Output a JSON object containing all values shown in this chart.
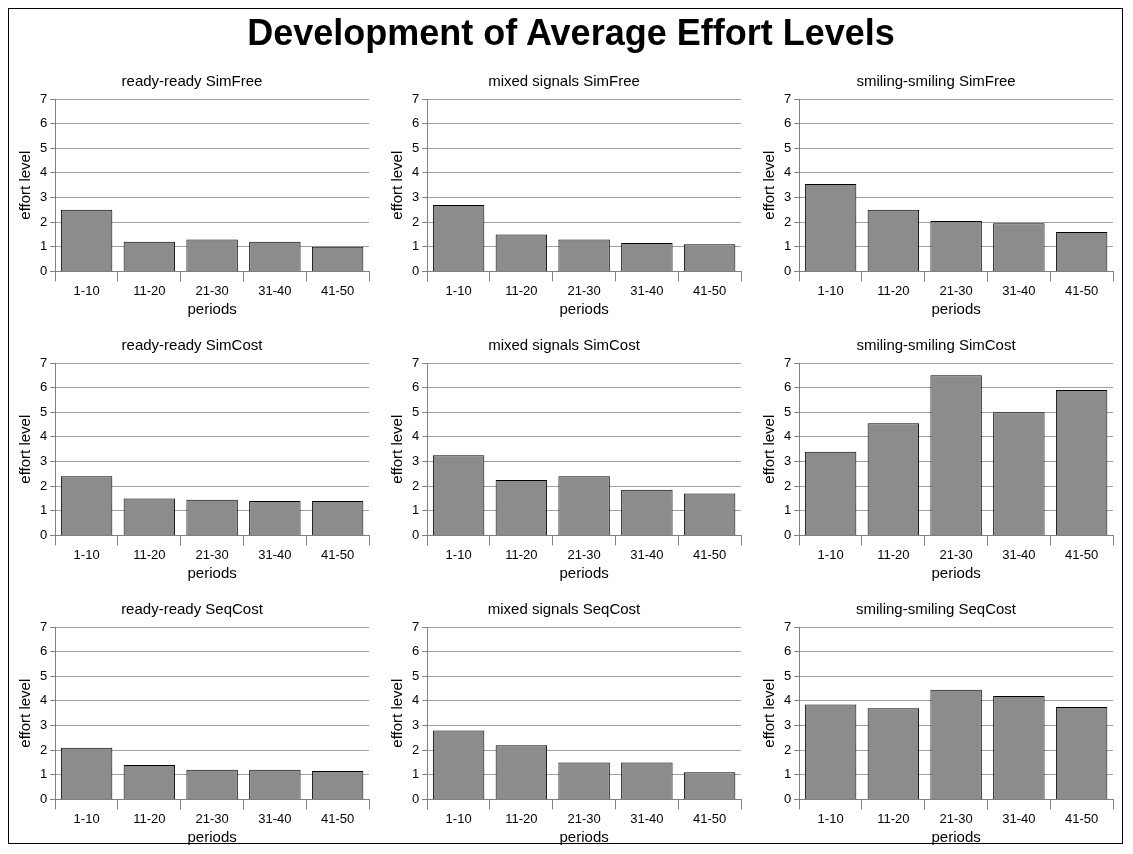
{
  "chart_data": [
    {
      "type": "other",
      "title": "Development of Average Effort Levels"
    },
    {
      "type": "bar",
      "title": "ready-ready SimFree",
      "xlabel": "periods",
      "ylabel": "effort level",
      "categories": [
        "1-10",
        "11-20",
        "21-30",
        "31-40",
        "41-50"
      ],
      "values": [
        2.5,
        1.2,
        1.3,
        1.2,
        1.0
      ],
      "color": "#8c8c8c",
      "ylim": [
        0,
        7
      ],
      "yticks": [
        0,
        1,
        2,
        3,
        4,
        5,
        6,
        7
      ],
      "grid": "y"
    },
    {
      "type": "bar",
      "title": "mixed signals SimFree",
      "xlabel": "periods",
      "ylabel": "effort level",
      "categories": [
        "1-10",
        "11-20",
        "21-30",
        "31-40",
        "41-50"
      ],
      "values": [
        2.7,
        1.5,
        1.3,
        1.15,
        1.1
      ],
      "color": "#8c8c8c",
      "ylim": [
        0,
        7
      ],
      "yticks": [
        0,
        1,
        2,
        3,
        4,
        5,
        6,
        7
      ],
      "grid": "y"
    },
    {
      "type": "bar",
      "title": "smiling-smiling SimFree",
      "xlabel": "periods",
      "ylabel": "effort level",
      "categories": [
        "1-10",
        "11-20",
        "21-30",
        "31-40",
        "41-50"
      ],
      "values": [
        3.55,
        2.5,
        2.05,
        1.95,
        1.6
      ],
      "color": "#8c8c8c",
      "ylim": [
        0,
        7
      ],
      "yticks": [
        0,
        1,
        2,
        3,
        4,
        5,
        6,
        7
      ],
      "grid": "y"
    },
    {
      "type": "bar",
      "title": "ready-ready SimCost",
      "xlabel": "periods",
      "ylabel": "effort level",
      "categories": [
        "1-10",
        "11-20",
        "21-30",
        "31-40",
        "41-50"
      ],
      "values": [
        2.4,
        1.5,
        1.45,
        1.4,
        1.4
      ],
      "color": "#8c8c8c",
      "ylim": [
        0,
        7
      ],
      "yticks": [
        0,
        1,
        2,
        3,
        4,
        5,
        6,
        7
      ],
      "grid": "y"
    },
    {
      "type": "bar",
      "title": "mixed signals SimCost",
      "xlabel": "periods",
      "ylabel": "effort level",
      "categories": [
        "1-10",
        "11-20",
        "21-30",
        "31-40",
        "41-50"
      ],
      "values": [
        3.25,
        2.25,
        2.4,
        1.85,
        1.7
      ],
      "color": "#8c8c8c",
      "ylim": [
        0,
        7
      ],
      "yticks": [
        0,
        1,
        2,
        3,
        4,
        5,
        6,
        7
      ],
      "grid": "y"
    },
    {
      "type": "bar",
      "title": "smiling-smiling SimCost",
      "xlabel": "periods",
      "ylabel": "effort level",
      "categories": [
        "1-10",
        "11-20",
        "21-30",
        "31-40",
        "41-50"
      ],
      "values": [
        3.4,
        4.55,
        6.5,
        5.0,
        5.9
      ],
      "color": "#8c8c8c",
      "ylim": [
        0,
        7
      ],
      "yticks": [
        0,
        1,
        2,
        3,
        4,
        5,
        6,
        7
      ],
      "grid": "y"
    },
    {
      "type": "bar",
      "title": "ready-ready SeqCost",
      "xlabel": "periods",
      "ylabel": "effort level",
      "categories": [
        "1-10",
        "11-20",
        "21-30",
        "31-40",
        "41-50"
      ],
      "values": [
        2.1,
        1.4,
        1.2,
        1.2,
        1.15
      ],
      "color": "#8c8c8c",
      "ylim": [
        0,
        7
      ],
      "yticks": [
        0,
        1,
        2,
        3,
        4,
        5,
        6,
        7
      ],
      "grid": "y"
    },
    {
      "type": "bar",
      "title": "mixed signals SeqCost",
      "xlabel": "periods",
      "ylabel": "effort level",
      "categories": [
        "1-10",
        "11-20",
        "21-30",
        "31-40",
        "41-50"
      ],
      "values": [
        2.8,
        2.2,
        1.5,
        1.5,
        1.1
      ],
      "color": "#8c8c8c",
      "ylim": [
        0,
        7
      ],
      "yticks": [
        0,
        1,
        2,
        3,
        4,
        5,
        6,
        7
      ],
      "grid": "y"
    },
    {
      "type": "bar",
      "title": "smiling-smiling SeqCost",
      "xlabel": "periods",
      "ylabel": "effort level",
      "categories": [
        "1-10",
        "11-20",
        "21-30",
        "31-40",
        "41-50"
      ],
      "values": [
        3.85,
        3.7,
        4.45,
        4.2,
        3.75
      ],
      "color": "#8c8c8c",
      "ylim": [
        0,
        7
      ],
      "yticks": [
        0,
        1,
        2,
        3,
        4,
        5,
        6,
        7
      ],
      "grid": "y"
    }
  ]
}
